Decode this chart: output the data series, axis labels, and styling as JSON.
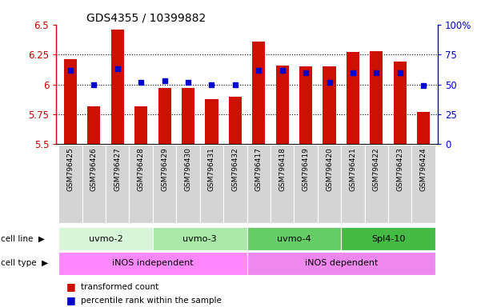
{
  "title": "GDS4355 / 10399882",
  "samples": [
    "GSM796425",
    "GSM796426",
    "GSM796427",
    "GSM796428",
    "GSM796429",
    "GSM796430",
    "GSM796431",
    "GSM796432",
    "GSM796417",
    "GSM796418",
    "GSM796419",
    "GSM796420",
    "GSM796421",
    "GSM796422",
    "GSM796423",
    "GSM796424"
  ],
  "red_values": [
    6.21,
    5.82,
    6.46,
    5.82,
    5.97,
    5.97,
    5.88,
    5.9,
    6.36,
    6.16,
    6.15,
    6.15,
    6.27,
    6.28,
    6.19,
    5.77
  ],
  "blue_values": [
    62,
    50,
    63,
    52,
    53,
    52,
    50,
    50,
    62,
    62,
    60,
    52,
    60,
    60,
    60,
    49
  ],
  "ymin": 5.5,
  "ymax": 6.5,
  "yticks": [
    5.5,
    5.75,
    6.0,
    6.25,
    6.5
  ],
  "ytick_labels": [
    "5.5",
    "5.75",
    "6",
    "6.25",
    "6.5"
  ],
  "y2min": 0,
  "y2max": 100,
  "y2ticks": [
    0,
    25,
    50,
    75,
    100
  ],
  "y2tick_labels": [
    "0",
    "25",
    "50",
    "75",
    "100%"
  ],
  "cell_lines": [
    {
      "label": "uvmo-2",
      "start": 0,
      "end": 4,
      "color": "#d9f5d9"
    },
    {
      "label": "uvmo-3",
      "start": 4,
      "end": 8,
      "color": "#aae8aa"
    },
    {
      "label": "uvmo-4",
      "start": 8,
      "end": 12,
      "color": "#66cc66"
    },
    {
      "label": "Spl4-10",
      "start": 12,
      "end": 16,
      "color": "#44bb44"
    }
  ],
  "cell_types": [
    {
      "label": "iNOS independent",
      "start": 0,
      "end": 8,
      "color": "#ff88ff"
    },
    {
      "label": "iNOS dependent",
      "start": 8,
      "end": 16,
      "color": "#ee88ee"
    }
  ],
  "bar_color": "#cc1100",
  "dot_color": "#0000cc",
  "title_color": "#000000",
  "left_axis_color": "#cc0000",
  "right_axis_color": "#0000cc",
  "legend_red_label": "transformed count",
  "legend_blue_label": "percentile rank within the sample",
  "bar_width": 0.55,
  "xtick_bg": "#d4d4d4"
}
